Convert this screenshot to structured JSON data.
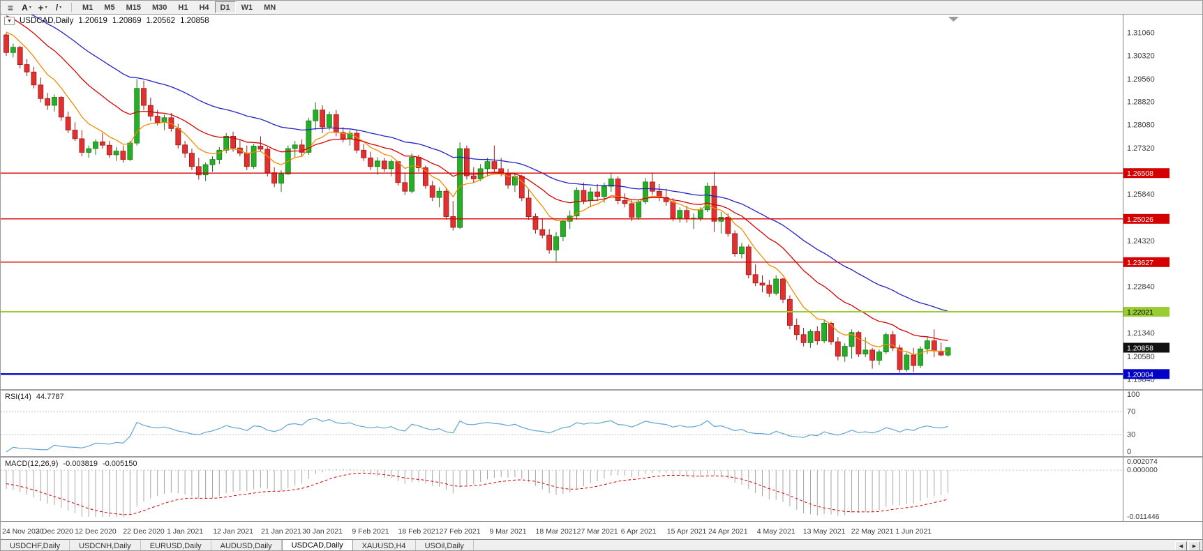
{
  "toolbar": {
    "icons": [
      {
        "name": "charts-list-icon",
        "glyph": "≡",
        "dropdown": false,
        "big": true
      },
      {
        "name": "cursor-tool-icon",
        "glyph": "A",
        "dropdown": true,
        "big": false
      },
      {
        "name": "crosshair-tool-icon",
        "glyph": "+",
        "dropdown": true,
        "big": true
      },
      {
        "name": "trendline-tool-icon",
        "glyph": "/",
        "dropdown": true,
        "big": false
      }
    ],
    "timeframes": [
      {
        "label": "M1"
      },
      {
        "label": "M5"
      },
      {
        "label": "M15"
      },
      {
        "label": "M30"
      },
      {
        "label": "H1"
      },
      {
        "label": "H4"
      },
      {
        "label": "D1",
        "active": true
      },
      {
        "label": "W1"
      },
      {
        "label": "MN"
      }
    ]
  },
  "chart_title": {
    "dropdown_glyph": "▼",
    "symbol_period": "USDCAD,Daily",
    "open": "1.20619",
    "high": "1.20869",
    "low": "1.20562",
    "close": "1.20858"
  },
  "chart_data": {
    "type": "candlestick",
    "symbol": "USDCAD",
    "period": "Daily",
    "price_scale": {
      "max": 1.315,
      "min": 1.1965
    },
    "colors": {
      "bull": "#27AE27",
      "bull_border": "#157A15",
      "bear": "#E03030",
      "bear_border": "#A01818"
    },
    "price_axis_labels": [
      "1.31060",
      "1.30320",
      "1.29560",
      "1.28820",
      "1.28080",
      "1.27320",
      "1.26580",
      "1.25840",
      "1.25100",
      "1.24320",
      "1.23580",
      "1.22840",
      "1.22100",
      "1.21340",
      "1.20580",
      "1.19840"
    ],
    "hlines": [
      {
        "price": 1.26508,
        "label": "1.26508",
        "color": "#D40000",
        "badge_text": "#FFFFFF",
        "width": 1.3
      },
      {
        "price": 1.25026,
        "label": "1.25026",
        "color": "#D40000",
        "badge_text": "#FFFFFF",
        "width": 1.3
      },
      {
        "price": 1.23627,
        "label": "1.23627",
        "color": "#D40000",
        "badge_text": "#FFFFFF",
        "width": 1.3
      },
      {
        "price": 1.22021,
        "label": "1.22021",
        "color": "#9ACD32",
        "badge_text": "#000000",
        "width": 2
      },
      {
        "price": 1.20004,
        "label": "1.20004",
        "color": "#0000C8",
        "badge_text": "#FFFFFF",
        "width": 2.4
      }
    ],
    "current_price_badge": {
      "price": 1.20858,
      "label": "1.20858",
      "bg": "#111111",
      "text": "#FFFFFF"
    },
    "moving_averages": [
      {
        "name": "ma-fast-orange",
        "period": 8,
        "color": "#F08C00"
      },
      {
        "name": "ma-mid-red",
        "period": 20,
        "color": "#D40000"
      },
      {
        "name": "ma-slow-blue",
        "period": 40,
        "color": "#2020C8"
      }
    ],
    "pre_history_closes": [
      1.326,
      1.3248,
      1.3235,
      1.3222,
      1.321,
      1.3185,
      1.3172,
      1.316,
      1.315,
      1.314,
      1.3128,
      1.3118,
      1.3108,
      1.31,
      1.3095
    ],
    "candles": [
      [
        1.3098,
        1.3105,
        1.303,
        1.3041
      ],
      [
        1.3041,
        1.307,
        1.3025,
        1.3058
      ],
      [
        1.3058,
        1.3062,
        1.299,
        1.3002
      ],
      [
        1.3002,
        1.302,
        1.2965,
        1.2978
      ],
      [
        1.2978,
        1.2995,
        1.2925,
        1.2936
      ],
      [
        1.2936,
        1.296,
        1.288,
        1.2892
      ],
      [
        1.2892,
        1.291,
        1.2855,
        1.287
      ],
      [
        1.287,
        1.2905,
        1.285,
        1.2896
      ],
      [
        1.2896,
        1.29,
        1.282,
        1.2832
      ],
      [
        1.2832,
        1.285,
        1.278,
        1.279
      ],
      [
        1.279,
        1.2815,
        1.2755,
        1.2762
      ],
      [
        1.2762,
        1.279,
        1.2705,
        1.2718
      ],
      [
        1.2718,
        1.274,
        1.27,
        1.273
      ],
      [
        1.273,
        1.276,
        1.271,
        1.2752
      ],
      [
        1.2752,
        1.278,
        1.273,
        1.2741
      ],
      [
        1.2741,
        1.2755,
        1.27,
        1.271
      ],
      [
        1.271,
        1.2735,
        1.269,
        1.2722
      ],
      [
        1.2722,
        1.274,
        1.2685,
        1.2695
      ],
      [
        1.2695,
        1.2755,
        1.269,
        1.2748
      ],
      [
        1.2748,
        1.2955,
        1.274,
        1.2925
      ],
      [
        1.2925,
        1.295,
        1.2855,
        1.287
      ],
      [
        1.287,
        1.2895,
        1.282,
        1.2835
      ],
      [
        1.2835,
        1.2855,
        1.2805,
        1.2815
      ],
      [
        1.2815,
        1.284,
        1.279,
        1.283
      ],
      [
        1.283,
        1.2845,
        1.2785,
        1.2795
      ],
      [
        1.2795,
        1.281,
        1.273,
        1.2742
      ],
      [
        1.2742,
        1.2755,
        1.27,
        1.2715
      ],
      [
        1.2715,
        1.273,
        1.266,
        1.2672
      ],
      [
        1.2672,
        1.27,
        1.263,
        1.2645
      ],
      [
        1.2645,
        1.2685,
        1.2625,
        1.2678
      ],
      [
        1.2678,
        1.2705,
        1.2655,
        1.2695
      ],
      [
        1.2695,
        1.2735,
        1.268,
        1.2725
      ],
      [
        1.2725,
        1.278,
        1.2715,
        1.277
      ],
      [
        1.277,
        1.2785,
        1.272,
        1.2732
      ],
      [
        1.2732,
        1.276,
        1.2705,
        1.2715
      ],
      [
        1.2715,
        1.274,
        1.266,
        1.2672
      ],
      [
        1.2672,
        1.2745,
        1.2665,
        1.2738
      ],
      [
        1.2738,
        1.277,
        1.272,
        1.2728
      ],
      [
        1.2728,
        1.2735,
        1.264,
        1.2652
      ],
      [
        1.2652,
        1.267,
        1.2605,
        1.2618
      ],
      [
        1.2618,
        1.266,
        1.259,
        1.2648
      ],
      [
        1.2648,
        1.274,
        1.2645,
        1.273
      ],
      [
        1.273,
        1.2755,
        1.27,
        1.2742
      ],
      [
        1.2742,
        1.276,
        1.2705,
        1.2718
      ],
      [
        1.2718,
        1.283,
        1.271,
        1.282
      ],
      [
        1.282,
        1.288,
        1.279,
        1.2855
      ],
      [
        1.2855,
        1.287,
        1.278,
        1.28
      ],
      [
        1.28,
        1.285,
        1.279,
        1.284
      ],
      [
        1.284,
        1.2855,
        1.277,
        1.2782
      ],
      [
        1.2782,
        1.28,
        1.275,
        1.2762
      ],
      [
        1.2762,
        1.279,
        1.274,
        1.278
      ],
      [
        1.278,
        1.279,
        1.2715,
        1.2725
      ],
      [
        1.2725,
        1.2745,
        1.269,
        1.27
      ],
      [
        1.27,
        1.272,
        1.266,
        1.2672
      ],
      [
        1.2672,
        1.2702,
        1.2645,
        1.269
      ],
      [
        1.269,
        1.27,
        1.2655,
        1.2665
      ],
      [
        1.2665,
        1.2695,
        1.264,
        1.2688
      ],
      [
        1.2688,
        1.269,
        1.261,
        1.262
      ],
      [
        1.262,
        1.265,
        1.258,
        1.2592
      ],
      [
        1.2592,
        1.2715,
        1.2585,
        1.2702
      ],
      [
        1.2702,
        1.271,
        1.2655,
        1.2668
      ],
      [
        1.2668,
        1.2675,
        1.26,
        1.261
      ],
      [
        1.261,
        1.2625,
        1.256,
        1.2572
      ],
      [
        1.2572,
        1.2605,
        1.254,
        1.2592
      ],
      [
        1.2592,
        1.26,
        1.25,
        1.251
      ],
      [
        1.251,
        1.256,
        1.2465,
        1.2475
      ],
      [
        1.2475,
        1.275,
        1.247,
        1.273
      ],
      [
        1.273,
        1.274,
        1.263,
        1.2642
      ],
      [
        1.2642,
        1.267,
        1.262,
        1.2632
      ],
      [
        1.2632,
        1.268,
        1.2625,
        1.2665
      ],
      [
        1.2665,
        1.27,
        1.264,
        1.2688
      ],
      [
        1.2688,
        1.274,
        1.2655,
        1.2665
      ],
      [
        1.2665,
        1.27,
        1.264,
        1.265
      ],
      [
        1.265,
        1.2665,
        1.26,
        1.2612
      ],
      [
        1.2612,
        1.265,
        1.259,
        1.264
      ],
      [
        1.264,
        1.2645,
        1.256,
        1.257
      ],
      [
        1.257,
        1.26,
        1.25,
        1.251
      ],
      [
        1.251,
        1.252,
        1.2455,
        1.2468
      ],
      [
        1.2468,
        1.2505,
        1.244,
        1.245
      ],
      [
        1.245,
        1.247,
        1.239,
        1.2402
      ],
      [
        1.2402,
        1.246,
        1.2365,
        1.2445
      ],
      [
        1.2445,
        1.25,
        1.243,
        1.2495
      ],
      [
        1.2495,
        1.253,
        1.247,
        1.2512
      ],
      [
        1.2512,
        1.2605,
        1.25,
        1.2595
      ],
      [
        1.2595,
        1.262,
        1.255,
        1.2562
      ],
      [
        1.2562,
        1.2605,
        1.254,
        1.259
      ],
      [
        1.259,
        1.2615,
        1.256,
        1.2575
      ],
      [
        1.2575,
        1.262,
        1.2555,
        1.2608
      ],
      [
        1.2608,
        1.265,
        1.259,
        1.2632
      ],
      [
        1.2632,
        1.264,
        1.255,
        1.2562
      ],
      [
        1.2562,
        1.2585,
        1.254,
        1.2552
      ],
      [
        1.2552,
        1.2565,
        1.2495,
        1.2508
      ],
      [
        1.2508,
        1.2565,
        1.25,
        1.2558
      ],
      [
        1.2558,
        1.2635,
        1.255,
        1.2622
      ],
      [
        1.2622,
        1.265,
        1.258,
        1.2592
      ],
      [
        1.2592,
        1.2615,
        1.256,
        1.2572
      ],
      [
        1.2572,
        1.26,
        1.2545,
        1.2558
      ],
      [
        1.2558,
        1.257,
        1.2495,
        1.2505
      ],
      [
        1.2505,
        1.254,
        1.249,
        1.253
      ],
      [
        1.253,
        1.2545,
        1.249,
        1.2502
      ],
      [
        1.2502,
        1.252,
        1.247,
        1.2505
      ],
      [
        1.2505,
        1.254,
        1.2495,
        1.2532
      ],
      [
        1.2532,
        1.262,
        1.2525,
        1.2608
      ],
      [
        1.2608,
        1.2655,
        1.246,
        1.2495
      ],
      [
        1.2495,
        1.2525,
        1.2455,
        1.2508
      ],
      [
        1.2508,
        1.252,
        1.2445,
        1.2455
      ],
      [
        1.2455,
        1.2465,
        1.238,
        1.239
      ],
      [
        1.239,
        1.2425,
        1.2375,
        1.2412
      ],
      [
        1.2412,
        1.242,
        1.231,
        1.2322
      ],
      [
        1.2322,
        1.2355,
        1.2285,
        1.2295
      ],
      [
        1.2295,
        1.232,
        1.2265,
        1.2288
      ],
      [
        1.2288,
        1.2305,
        1.225,
        1.2262
      ],
      [
        1.2262,
        1.232,
        1.2255,
        1.2308
      ],
      [
        1.2308,
        1.2312,
        1.223,
        1.2242
      ],
      [
        1.2242,
        1.2255,
        1.2145,
        1.2158
      ],
      [
        1.2158,
        1.218,
        1.211,
        1.2128
      ],
      [
        1.2128,
        1.215,
        1.209,
        1.2102
      ],
      [
        1.2102,
        1.2145,
        1.2085,
        1.2138
      ],
      [
        1.2138,
        1.2155,
        1.2095,
        1.2108
      ],
      [
        1.2108,
        1.2175,
        1.21,
        1.2165
      ],
      [
        1.2165,
        1.217,
        1.2095,
        1.2105
      ],
      [
        1.2105,
        1.212,
        1.2045,
        1.2058
      ],
      [
        1.2058,
        1.21,
        1.204,
        1.209
      ],
      [
        1.209,
        1.2145,
        1.205,
        1.2135
      ],
      [
        1.2135,
        1.214,
        1.2055,
        1.2065
      ],
      [
        1.2065,
        1.212,
        1.2055,
        1.2078
      ],
      [
        1.2078,
        1.2085,
        1.2018,
        1.2045
      ],
      [
        1.2045,
        1.208,
        1.203,
        1.2072
      ],
      [
        1.2072,
        1.2135,
        1.2065,
        1.2128
      ],
      [
        1.2128,
        1.214,
        1.2075,
        1.2085
      ],
      [
        1.2085,
        1.2095,
        1.2005,
        1.2015
      ],
      [
        1.2015,
        1.207,
        1.2008,
        1.2062
      ],
      [
        1.2062,
        1.2085,
        1.2007,
        1.2028
      ],
      [
        1.2028,
        1.209,
        1.202,
        1.2082
      ],
      [
        1.2082,
        1.212,
        1.2065,
        1.2108
      ],
      [
        1.2108,
        1.2145,
        1.2055,
        1.2075
      ],
      [
        1.2075,
        1.2102,
        1.2058,
        1.2062
      ],
      [
        1.20619,
        1.20869,
        1.20562,
        1.20858
      ]
    ],
    "time_axis": [
      {
        "label": "24 Nov 2020",
        "bar": 0
      },
      {
        "label": "3 Dec 2020",
        "bar": 7
      },
      {
        "label": "12 Dec 2020",
        "bar": 13
      },
      {
        "label": "22 Dec 2020",
        "bar": 20
      },
      {
        "label": "1 Jan 2021",
        "bar": 26
      },
      {
        "label": "12 Jan 2021",
        "bar": 33
      },
      {
        "label": "21 Jan 2021",
        "bar": 40
      },
      {
        "label": "30 Jan 2021",
        "bar": 46
      },
      {
        "label": "9 Feb 2021",
        "bar": 53
      },
      {
        "label": "18 Feb 2021",
        "bar": 60
      },
      {
        "label": "27 Feb 2021",
        "bar": 66
      },
      {
        "label": "9 Mar 2021",
        "bar": 73
      },
      {
        "label": "18 Mar 2021",
        "bar": 80
      },
      {
        "label": "27 Mar 2021",
        "bar": 86
      },
      {
        "label": "6 Apr 2021",
        "bar": 92
      },
      {
        "label": "15 Apr 2021",
        "bar": 99
      },
      {
        "label": "24 Apr 2021",
        "bar": 105
      },
      {
        "label": "4 May 2021",
        "bar": 112
      },
      {
        "label": "13 May 2021",
        "bar": 119
      },
      {
        "label": "22 May 2021",
        "bar": 126
      },
      {
        "label": "1 Jun 2021",
        "bar": 132
      }
    ]
  },
  "rsi": {
    "name": "RSI(14)",
    "value": "44.7787",
    "period": 14,
    "color": "#5FA6D1",
    "levels": [
      70,
      30
    ],
    "axis_labels": [
      {
        "text": "100",
        "value": 100
      },
      {
        "text": "70",
        "value": 70
      },
      {
        "text": "30",
        "value": 30
      },
      {
        "text": "0",
        "value": 0
      }
    ]
  },
  "macd": {
    "name": "MACD(12,26,9)",
    "value_main": "-0.003819",
    "value_signal": "-0.005150",
    "fast": 12,
    "slow": 26,
    "signal_period": 9,
    "hist_color": "#A6A6A6",
    "signal_color": "#D40000",
    "scale": {
      "max": 0.002074,
      "min": -0.011446
    },
    "axis_labels": [
      {
        "text": "0.002074",
        "value": 0.002074
      },
      {
        "text": "0.000000",
        "value": 0
      },
      {
        "text": "-0.011446",
        "value": -0.011446
      }
    ]
  },
  "tabs": {
    "items": [
      {
        "label": "USDCHF,Daily"
      },
      {
        "label": "USDCNH,Daily"
      },
      {
        "label": "EURUSD,Daily"
      },
      {
        "label": "AUDUSD,Daily"
      },
      {
        "label": "USDCAD,Daily",
        "active": true
      },
      {
        "label": "XAUUSD,H4"
      },
      {
        "label": "USOil,Daily"
      }
    ],
    "scroll_left": "◀",
    "scroll_right": "▶"
  }
}
